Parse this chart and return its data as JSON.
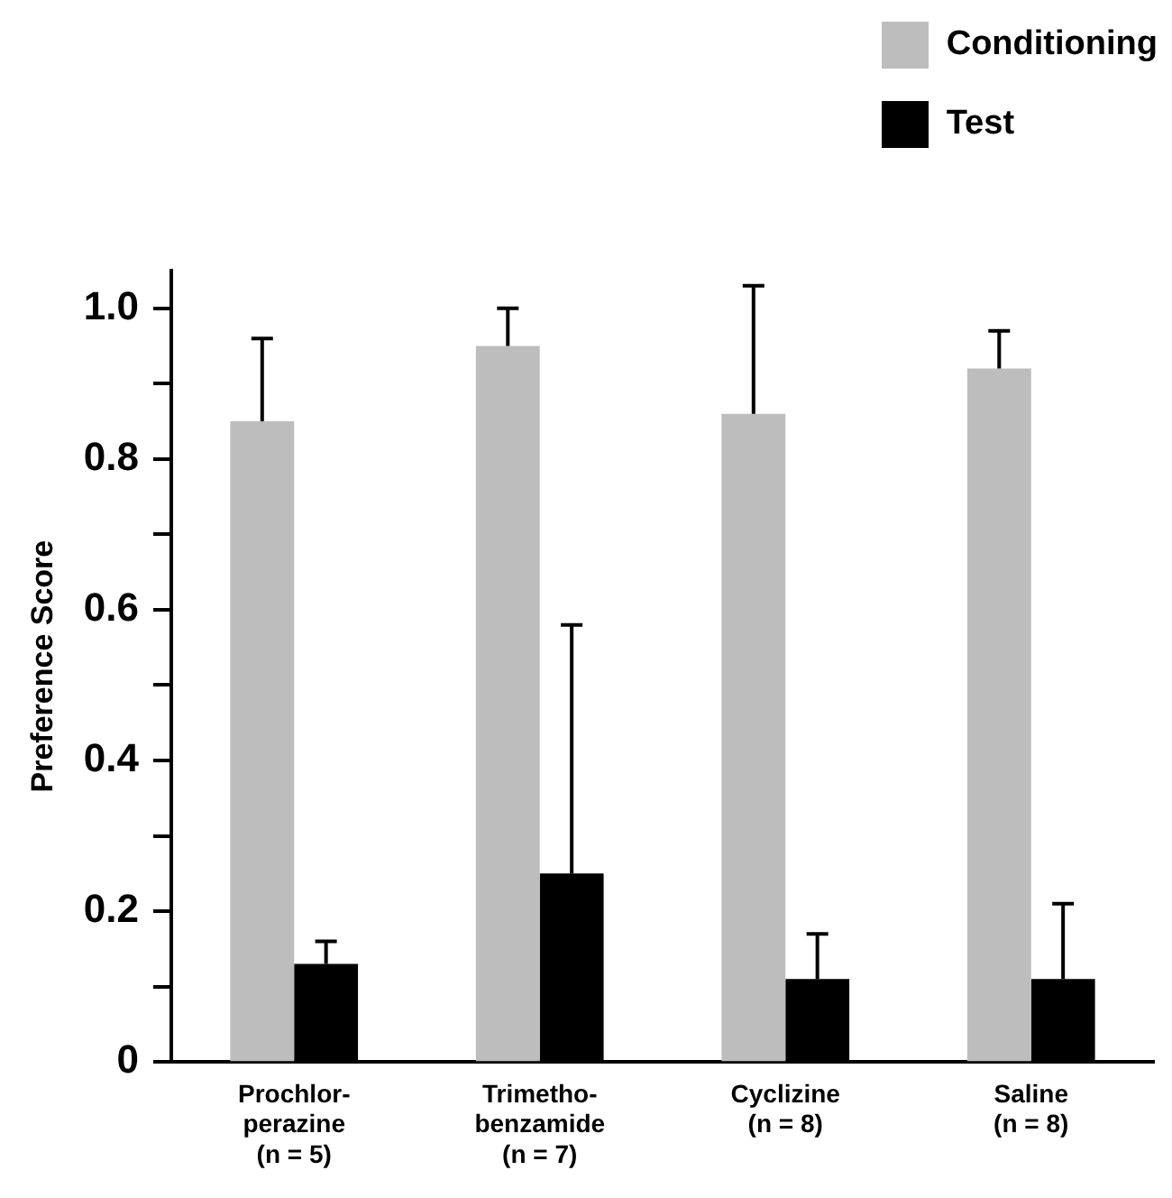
{
  "chart_data": {
    "type": "bar",
    "ylabel": "Preference Score",
    "categories": [
      "Prochlor-\nperazine\n(n = 5)",
      "Trimetho-\nbenzamide\n(n = 7)",
      "Cyclizine\n(n = 8)",
      "Saline\n(n = 8)"
    ],
    "series": [
      {
        "name": "Conditioning",
        "color": "#bdbdbd",
        "values": [
          0.85,
          0.95,
          0.86,
          0.92
        ],
        "errors": [
          [
            0.85,
            0.96
          ],
          [
            0.95,
            1.0
          ],
          [
            0.86,
            1.03
          ],
          [
            0.92,
            0.97
          ]
        ]
      },
      {
        "name": "Test",
        "color": "#000000",
        "values": [
          0.13,
          0.25,
          0.11,
          0.11
        ],
        "errors": [
          [
            0.13,
            0.16
          ],
          [
            0.25,
            0.58
          ],
          [
            0.11,
            0.17
          ],
          [
            0.11,
            0.21
          ]
        ]
      }
    ],
    "ylim": [
      0,
      1.05
    ],
    "yticks": [
      0,
      {
        "value": 0.1,
        "label": null
      },
      {
        "value": 0.2,
        "label": "0.2"
      },
      {
        "value": 0.3,
        "label": null
      },
      {
        "value": 0.4,
        "label": "0.4"
      },
      {
        "value": 0.5,
        "label": null
      },
      {
        "value": 0.6,
        "label": "0.6"
      },
      {
        "value": 0.7,
        "label": null
      },
      {
        "value": 0.8,
        "label": "0.8"
      },
      {
        "value": 0.9,
        "label": null
      },
      {
        "value": 1.0,
        "label": "1.0"
      }
    ],
    "grid": false,
    "legend": "top right"
  }
}
